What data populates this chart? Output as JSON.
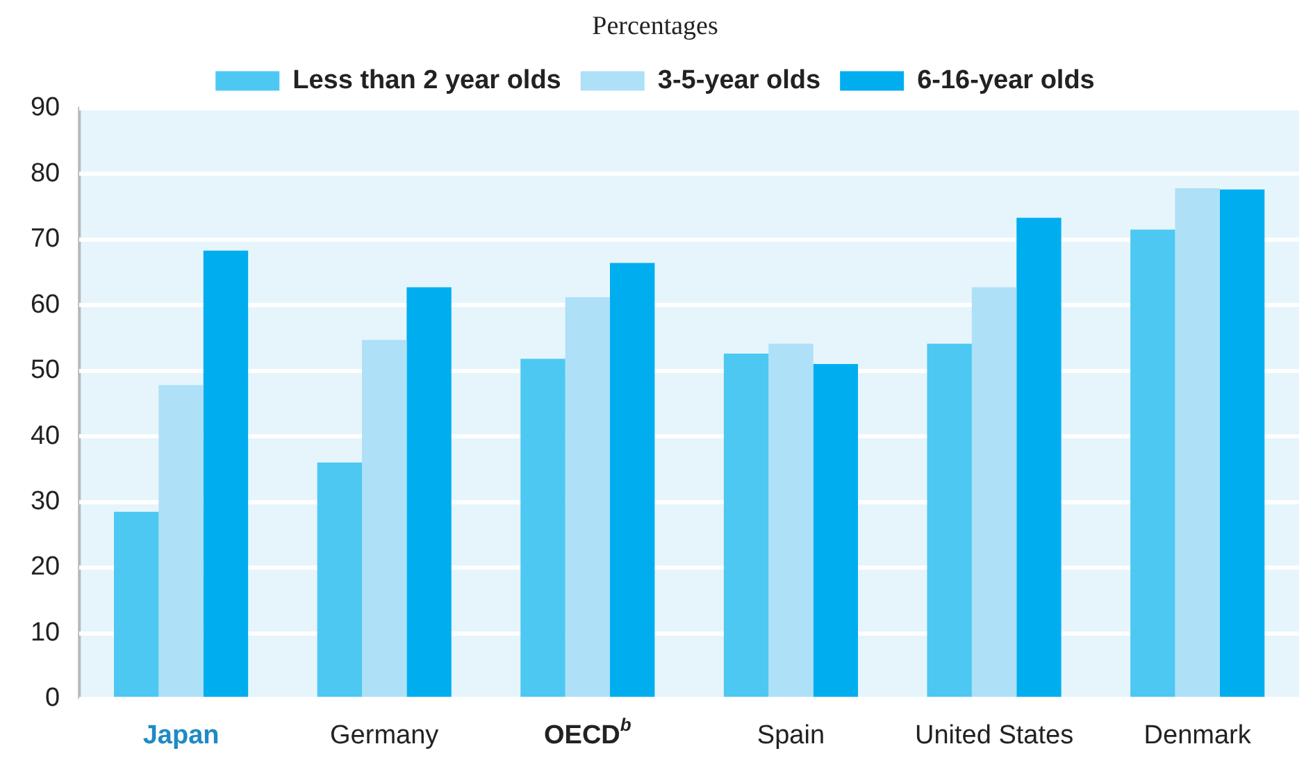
{
  "chart_data": {
    "type": "bar",
    "title": "Percentages",
    "categories": [
      "Japan",
      "Germany",
      "OECD$^{b}$",
      "Spain",
      "United States",
      "Denmark"
    ],
    "series": [
      {
        "name": "Less than 2 year olds",
        "color": "#4dc8f2",
        "values": [
          28.5,
          36,
          51.8,
          52.6,
          54.1,
          71.5
        ]
      },
      {
        "name": "3-5-year olds",
        "color": "#aee0f7",
        "values": [
          47.8,
          54.7,
          61.2,
          54.1,
          62.7,
          77.8
        ]
      },
      {
        "name": "6-16-year olds",
        "color": "#00aeef",
        "values": [
          68.3,
          62.7,
          66.4,
          51,
          73.3,
          77.6
        ]
      }
    ],
    "ylim": [
      0,
      90
    ],
    "yticks": [
      0,
      10,
      20,
      30,
      40,
      50,
      60,
      70,
      80,
      90
    ],
    "grid": "y",
    "legend": "top"
  }
}
